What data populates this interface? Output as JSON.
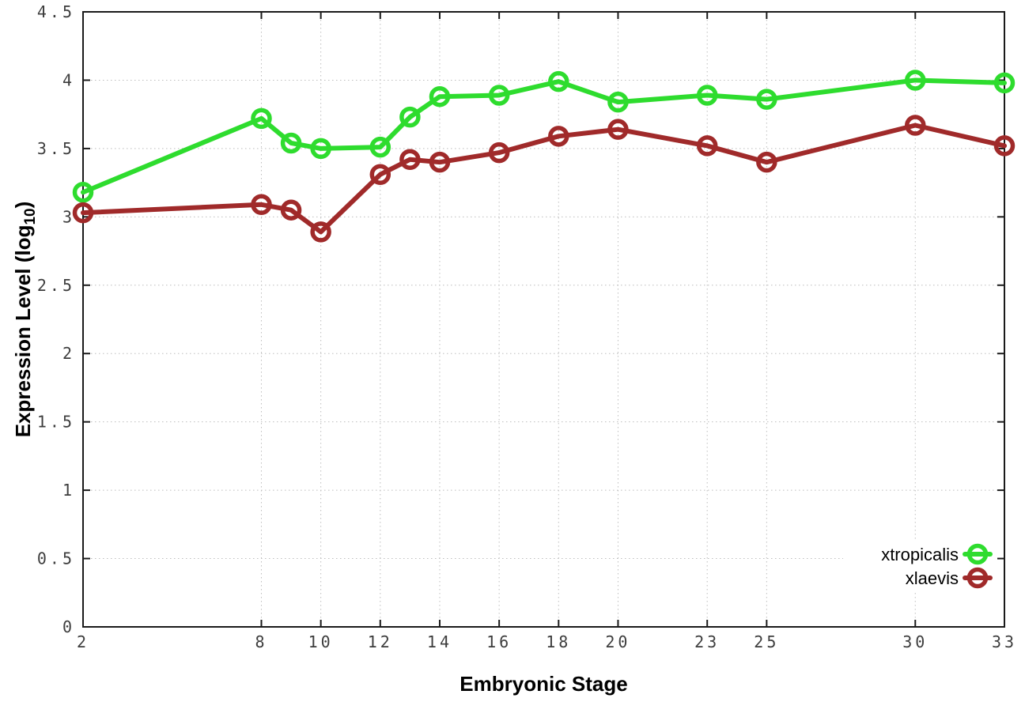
{
  "chart_data": {
    "type": "line",
    "title": "",
    "xlabel": "Embryonic Stage",
    "ylabel": {
      "main": "Expression Level (log",
      "sub": "10",
      "suffix": ")"
    },
    "x": [
      2,
      8,
      9,
      10,
      12,
      13,
      14,
      16,
      18,
      20,
      23,
      25,
      30,
      33
    ],
    "xtick_values": [
      2,
      8,
      10,
      12,
      14,
      16,
      18,
      20,
      23,
      25,
      30,
      33
    ],
    "xtick_labels": [
      "2",
      "8",
      "10",
      "12",
      "14",
      "16",
      "18",
      "20",
      "23",
      "25",
      "30",
      "33"
    ],
    "ytick_values": [
      0,
      0.5,
      1,
      1.5,
      2,
      2.5,
      3,
      3.5,
      4,
      4.5
    ],
    "ytick_labels": [
      "0",
      "0.5",
      "1",
      "1.5",
      "2",
      "2.5",
      "3",
      "3.5",
      "4",
      "4.5"
    ],
    "xlim": [
      2,
      33
    ],
    "ylim": [
      0,
      4.5
    ],
    "grid": true,
    "marker": "open-circle",
    "legend_position": "inside-bottom-right",
    "series": [
      {
        "name": "xtropicalis",
        "color": "#2edc2e",
        "values": [
          3.18,
          3.72,
          3.54,
          3.5,
          3.51,
          3.73,
          3.88,
          3.89,
          3.99,
          3.84,
          3.89,
          3.86,
          4.0,
          3.98
        ]
      },
      {
        "name": "xlaevis",
        "color": "#a02a2a",
        "values": [
          3.03,
          3.09,
          3.05,
          2.89,
          3.31,
          3.42,
          3.4,
          3.47,
          3.59,
          3.64,
          3.52,
          3.4,
          3.67,
          3.52
        ]
      }
    ],
    "colors": {
      "background": "#ffffff",
      "axis": "#1a1a1a",
      "grid": "#bdbdbd",
      "tick_label": "#3d3d3d",
      "axis_label": "#000000"
    }
  }
}
